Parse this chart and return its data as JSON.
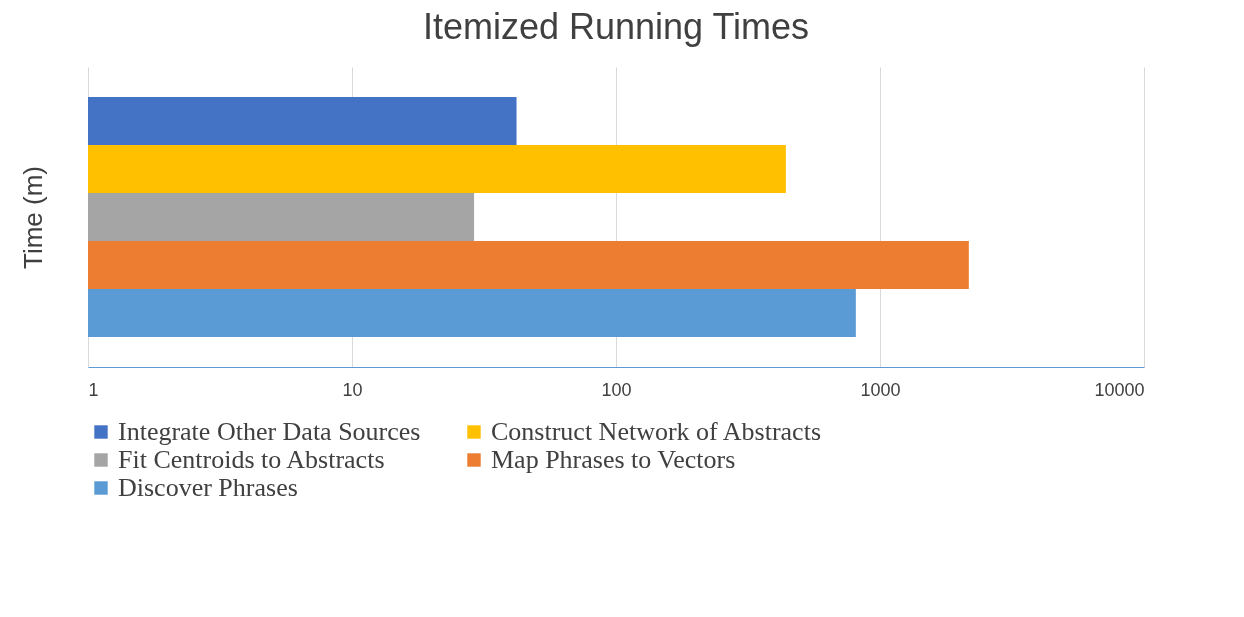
{
  "chart_data": {
    "type": "bar",
    "title": "Itemized Running Times",
    "ylabel": "Time (m)",
    "orientation": "horizontal",
    "log": "x",
    "grid": "x",
    "legend": "bottom",
    "categories": [
      null
    ],
    "xlim": [
      1,
      10000
    ],
    "xticks": [
      1,
      10,
      100,
      1000,
      10000
    ],
    "series": [
      {
        "name": "Integrate Other Data Sources",
        "color": "#4472c4",
        "values": [
          42
        ]
      },
      {
        "name": "Construct Network of Abstracts",
        "color": "#ffc000",
        "values": [
          440
        ]
      },
      {
        "name": "Fit Centroids to Abstracts",
        "color": "#a5a5a5",
        "values": [
          29
        ]
      },
      {
        "name": "Map Phrases to Vectors",
        "color": "#ed7d31",
        "values": [
          2170
        ]
      },
      {
        "name": "Discover Phrases",
        "color": "#5b9bd5",
        "values": [
          810
        ]
      }
    ]
  }
}
